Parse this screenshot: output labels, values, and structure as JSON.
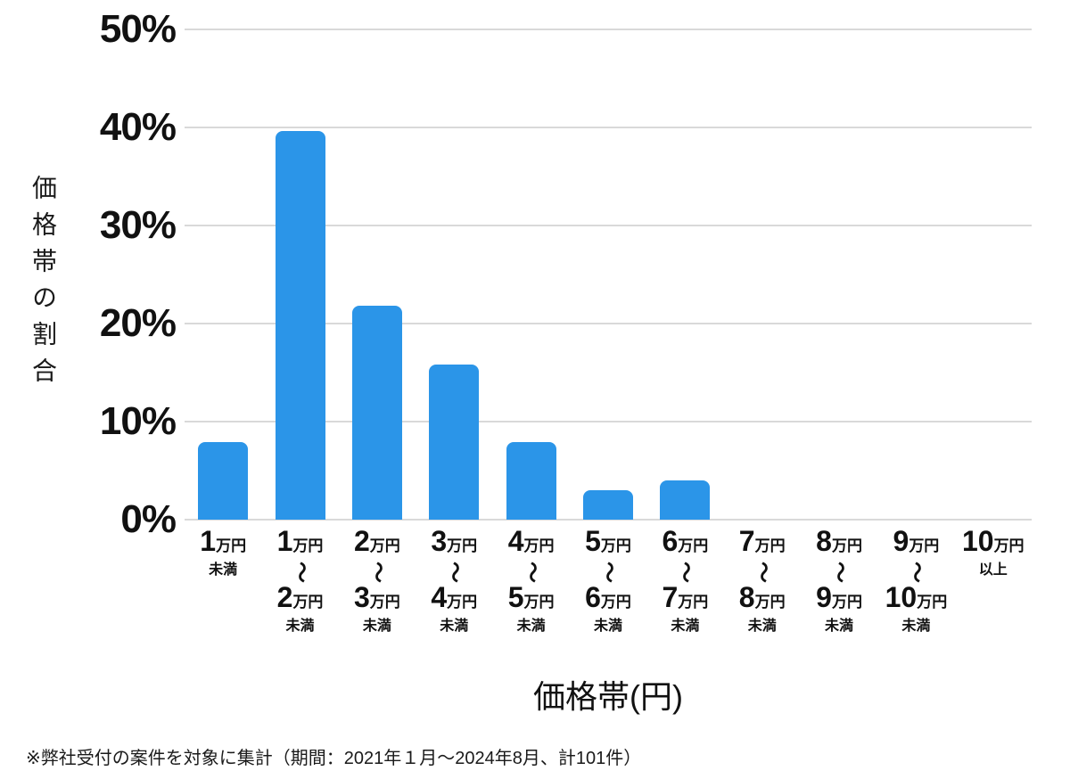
{
  "chart_data": {
    "type": "bar",
    "title": "",
    "ylabel": "価格帯の割合",
    "xlabel": "価格帯(円)",
    "ylim": [
      0,
      50
    ],
    "yticks": [
      0,
      10,
      20,
      30,
      40,
      50
    ],
    "ytick_suffix": "%",
    "grid": true,
    "legend": "none",
    "bar_color": "#2B95E8",
    "categories": [
      [
        "1万円",
        "未満"
      ],
      [
        "1万円",
        "〜",
        "2万円",
        "未満"
      ],
      [
        "2万円",
        "〜",
        "3万円",
        "未満"
      ],
      [
        "3万円",
        "〜",
        "4万円",
        "未満"
      ],
      [
        "4万円",
        "〜",
        "5万円",
        "未満"
      ],
      [
        "5万円",
        "〜",
        "6万円",
        "未満"
      ],
      [
        "6万円",
        "〜",
        "7万円",
        "未満"
      ],
      [
        "7万円",
        "〜",
        "8万円",
        "未満"
      ],
      [
        "8万円",
        "〜",
        "9万円",
        "未満"
      ],
      [
        "9万円",
        "〜",
        "10万円",
        "未満"
      ],
      [
        "10万円",
        "以上"
      ]
    ],
    "values": [
      7.9,
      39.6,
      21.8,
      15.8,
      7.9,
      3.0,
      4.0,
      0,
      0,
      0,
      0
    ],
    "footnote": "※弊社受付の案件を対象に集計（期間：2021年１月～2024年8月、計101件）"
  }
}
